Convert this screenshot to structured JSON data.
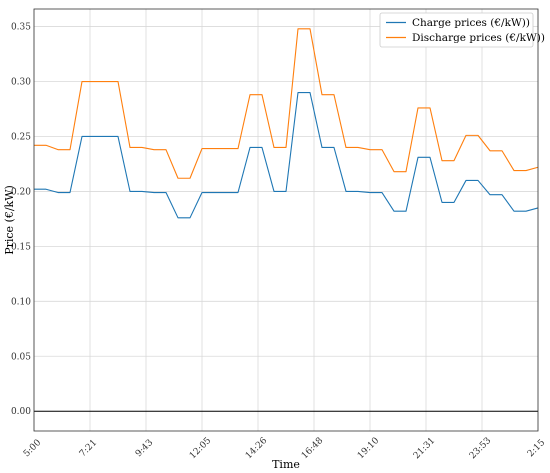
{
  "chart_data": {
    "type": "line",
    "title": "",
    "xlabel": "Time",
    "ylabel": "Price (€/kW)",
    "x": [
      "5:00",
      "5:30",
      "6:00",
      "6:30",
      "7:00",
      "7:30",
      "8:00",
      "8:30",
      "9:00",
      "9:30",
      "10:00",
      "10:30",
      "11:00",
      "11:30",
      "12:00",
      "12:30",
      "13:00",
      "13:30",
      "14:00",
      "14:30",
      "15:00",
      "15:30",
      "16:00",
      "16:30",
      "17:00",
      "17:30",
      "18:00",
      "18:30",
      "19:00",
      "19:30",
      "20:00",
      "20:30",
      "21:00",
      "21:30",
      "22:00",
      "22:30",
      "23:00",
      "23:30",
      "0:00",
      "0:30",
      "1:00",
      "1:30",
      "2:00"
    ],
    "x_ticks": [
      "5:00",
      "7:21",
      "9:43",
      "12:05",
      "14:26",
      "16:48",
      "19:10",
      "21:31",
      "23:53",
      "2:15"
    ],
    "ylim": [
      -0.018,
      0.366
    ],
    "y_ticks": [
      "0.00",
      "0.05",
      "0.10",
      "0.15",
      "0.20",
      "0.25",
      "0.30",
      "0.35"
    ],
    "y_tick_values": [
      0,
      0.05,
      0.1,
      0.15,
      0.2,
      0.25,
      0.3,
      0.35
    ],
    "grid": true,
    "legend_position": "top-right",
    "series": [
      {
        "name": "Charge prices (€/kW))",
        "color": "#1f77b4",
        "values": [
          0.202,
          0.202,
          0.199,
          0.199,
          0.25,
          0.25,
          0.25,
          0.25,
          0.2,
          0.2,
          0.199,
          0.199,
          0.176,
          0.176,
          0.199,
          0.199,
          0.199,
          0.199,
          0.24,
          0.24,
          0.2,
          0.2,
          0.29,
          0.29,
          0.24,
          0.24,
          0.2,
          0.2,
          0.199,
          0.199,
          0.182,
          0.182,
          0.231,
          0.231,
          0.19,
          0.19,
          0.21,
          0.21,
          0.197,
          0.197,
          0.182,
          0.182,
          0.185
        ]
      },
      {
        "name": "Discharge prices (€/kW))",
        "color": "#ff7f0e",
        "values": [
          0.242,
          0.242,
          0.238,
          0.238,
          0.3,
          0.3,
          0.3,
          0.3,
          0.24,
          0.24,
          0.238,
          0.238,
          0.212,
          0.212,
          0.239,
          0.239,
          0.239,
          0.239,
          0.288,
          0.288,
          0.24,
          0.24,
          0.348,
          0.348,
          0.288,
          0.288,
          0.24,
          0.24,
          0.238,
          0.238,
          0.218,
          0.218,
          0.276,
          0.276,
          0.228,
          0.228,
          0.251,
          0.251,
          0.237,
          0.237,
          0.219,
          0.219,
          0.222
        ]
      }
    ]
  }
}
